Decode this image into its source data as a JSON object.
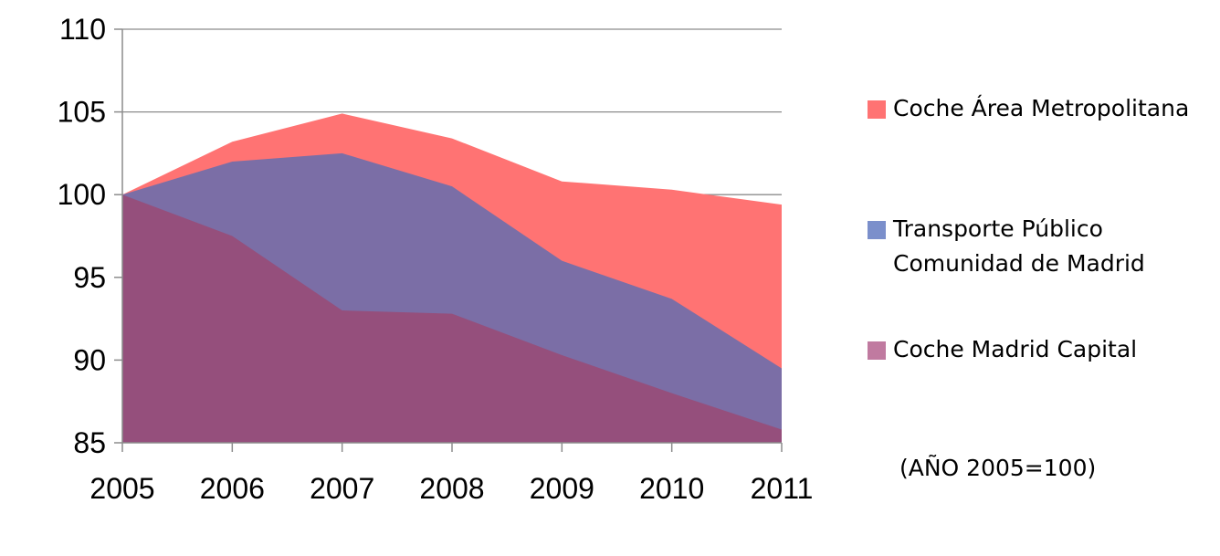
{
  "chart_data": {
    "type": "area",
    "categories": [
      "2005",
      "2006",
      "2007",
      "2008",
      "2009",
      "2010",
      "2011"
    ],
    "ylim": [
      85,
      110
    ],
    "yticks": [
      85,
      90,
      95,
      100,
      105,
      110
    ],
    "grid": true,
    "legend_position": "right",
    "note": "(AÑO 2005=100)",
    "series": [
      {
        "name": "Coche Área Metropolitana",
        "color": "#FF7373",
        "values": [
          100,
          103.2,
          104.9,
          103.4,
          100.8,
          100.3,
          99.4
        ]
      },
      {
        "name": "Transporte Público\nComunidad de Madrid",
        "color": "#7B6EA6",
        "values": [
          100,
          102.0,
          102.5,
          100.5,
          96.0,
          93.7,
          89.5
        ]
      },
      {
        "name": "Coche Madrid Capital",
        "color": "#954F7C",
        "values": [
          100,
          97.5,
          93.0,
          92.8,
          90.3,
          88.0,
          85.8
        ]
      }
    ],
    "legend_swatch_colors": [
      "#FF7373",
      "#7B8FCB",
      "#C07AA0"
    ]
  }
}
